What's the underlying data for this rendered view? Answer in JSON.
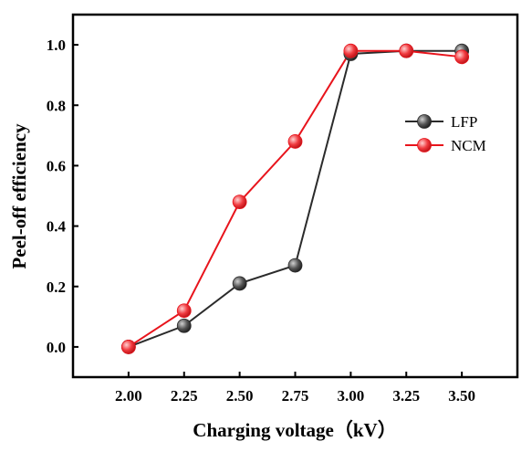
{
  "chart_data": {
    "type": "line",
    "xlabel": "Charging voltage（kV）",
    "ylabel": "Peel-off efficiency",
    "x": [
      2.0,
      2.25,
      2.5,
      2.75,
      3.0,
      3.25,
      3.5
    ],
    "x_tick_labels": [
      "2.00",
      "2.25",
      "2.50",
      "2.75",
      "3.00",
      "3.25",
      "3.50"
    ],
    "xlim": [
      1.75,
      3.75
    ],
    "y_ticks": [
      0.0,
      0.2,
      0.4,
      0.6,
      0.8,
      1.0
    ],
    "y_tick_labels": [
      "0.0",
      "0.2",
      "0.4",
      "0.6",
      "0.8",
      "1.0"
    ],
    "ylim": [
      -0.1,
      1.1
    ],
    "grid": false,
    "legend_position": "right",
    "series": [
      {
        "name": "LFP",
        "color": "#2b2b2b",
        "marker_color": "#4a4a4a",
        "values": [
          0.0,
          0.07,
          0.21,
          0.27,
          0.97,
          0.98,
          0.98
        ]
      },
      {
        "name": "NCM",
        "color": "#e8141c",
        "marker_color": "#f03a3f",
        "values": [
          0.0,
          0.12,
          0.48,
          0.68,
          0.98,
          0.98,
          0.96
        ]
      }
    ]
  }
}
